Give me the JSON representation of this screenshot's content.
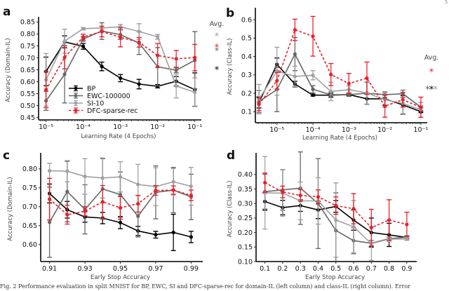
{
  "page_number": "5",
  "caption": "Fig. 2 Performance evaluation in split MNIST for BP, EWC, SI and DFC-sparse-rec for domain-IL (left column) and class-IL (right column). Error",
  "colors": {
    "BP": "#000000",
    "EWC-100000": "#666666",
    "SI-10": "#a0a0a0",
    "DFC-sparse-rec": "#e8202a"
  },
  "chart_data": [
    {
      "panel": "a",
      "type": "line",
      "xscale": "log",
      "xlabel": "Learning Rate (4 Epochs)",
      "ylabel": "Accuracy (Domain-IL)",
      "ylim": [
        0.44,
        0.86
      ],
      "xlim_log10": [
        -5.2,
        -0.9
      ],
      "xticks_log10": [
        -5,
        -4,
        -3,
        -2,
        -1
      ],
      "xtick_labels": [
        "10⁻⁵",
        "10⁻⁴",
        "10⁻³",
        "10⁻²",
        "10⁻¹"
      ],
      "yticks": [
        0.45,
        0.5,
        0.55,
        0.6,
        0.65,
        0.7,
        0.75,
        0.8,
        0.85
      ],
      "ytick_labels": [
        "0.45",
        "0.50",
        "0.55",
        "0.60",
        "0.65",
        "0.70",
        "0.75",
        "0.80",
        "0.85"
      ],
      "x_log10": [
        -5,
        -4.5,
        -4,
        -3.5,
        -3,
        -2.5,
        -2,
        -1.5,
        -1
      ],
      "legend": [
        "BP",
        "EWC-100000",
        "SI-10",
        "DFC-sparse-rec"
      ],
      "legend_position": "lower-center",
      "series": [
        {
          "name": "BP",
          "values": [
            0.643,
            0.767,
            0.748,
            0.664,
            0.615,
            0.59,
            0.581,
            0.602,
            0.567
          ],
          "err": [
            0.06,
            0.025,
            0.012,
            0.018,
            0.015,
            0.02,
            0.007,
            0.02,
            0.07
          ]
        },
        {
          "name": "EWC-100000",
          "values": [
            0.52,
            0.631,
            0.779,
            0.812,
            0.797,
            0.762,
            0.663,
            0.648,
            0.69
          ],
          "err": [
            0.04,
            0.12,
            0.01,
            0.035,
            0.02,
            0.048,
            0.08,
            0.01,
            0.12
          ]
        },
        {
          "name": "SI-10",
          "values": [
            0.608,
            0.77,
            0.822,
            0.825,
            0.83,
            0.81,
            0.788,
            0.582,
            0.556
          ],
          "err": [
            0.11,
            0.05,
            0.005,
            0.008,
            0.01,
            0.033,
            0.01,
            0.05,
            0.06
          ]
        },
        {
          "name": "DFC-sparse-rec",
          "values": [
            0.566,
            0.702,
            0.787,
            0.81,
            0.786,
            0.765,
            0.71,
            0.696,
            0.701
          ],
          "err": [
            0.075,
            0.048,
            0.012,
            0.022,
            0.04,
            0.02,
            0.05,
            0.035,
            0.055
          ]
        }
      ],
      "annotation": {
        "title": "Avg.",
        "rows": [
          {
            "stars": [
              {
                "text": "*",
                "series": "SI-10"
              }
            ]
          },
          {
            "stars": [
              {
                "text": "*",
                "series": "DFC-sparse-rec"
              }
            ]
          },
          {
            "stars": [
              {
                "text": "*",
                "series": "EWC-100000"
              }
            ]
          },
          {
            "stars": [
              {
                "text": "*",
                "series": "BP"
              }
            ]
          }
        ]
      }
    },
    {
      "panel": "b",
      "type": "line",
      "xscale": "log",
      "xlabel": "Learning Rate (4 Epochs)",
      "ylabel": "Accuracy (Class-IL)",
      "ylim": [
        0.04,
        0.65
      ],
      "xlim_log10": [
        -5.6,
        -0.9
      ],
      "xticks_log10": [
        -5,
        -4,
        -3,
        -2,
        -1
      ],
      "xtick_labels": [
        "10⁻⁵",
        "10⁻⁴",
        "10⁻³",
        "10⁻²",
        "10⁻¹"
      ],
      "yticks": [
        0.1,
        0.2,
        0.3,
        0.4,
        0.5,
        0.6
      ],
      "ytick_labels": [
        "0.1",
        "0.2",
        "0.3",
        "0.4",
        "0.5",
        "0.6"
      ],
      "x_log10": [
        -5.5,
        -5,
        -4.5,
        -4,
        -3.5,
        -3,
        -2.5,
        -2,
        -1.5,
        -1
      ],
      "series": [
        {
          "name": "BP",
          "values": [
            0.15,
            0.357,
            0.25,
            0.19,
            0.19,
            0.193,
            0.17,
            0.17,
            0.137,
            0.1
          ],
          "err": [
            0.03,
            0.035,
            0.015,
            0.005,
            0.01,
            0.005,
            0.03,
            0.035,
            0.05,
            0.005
          ]
        },
        {
          "name": "EWC-100000",
          "values": [
            0.155,
            0.22,
            0.413,
            0.222,
            0.192,
            0.193,
            0.2,
            0.193,
            0.197,
            0.125
          ],
          "err": [
            0.06,
            0.12,
            0.09,
            0.02,
            0.015,
            0.01,
            0.06,
            0.015,
            0.02,
            0.005
          ]
        },
        {
          "name": "SI-10",
          "values": [
            0.168,
            0.32,
            0.292,
            0.298,
            0.21,
            0.22,
            0.202,
            0.165,
            0.145,
            0.11
          ],
          "err": [
            0.08,
            0.13,
            0.055,
            0.025,
            0.05,
            0.02,
            0.06,
            0.04,
            0.06,
            0.04
          ]
        },
        {
          "name": "DFC-sparse-rec",
          "values": [
            0.14,
            0.268,
            0.545,
            0.51,
            0.302,
            0.253,
            0.282,
            0.13,
            0.165,
            0.124
          ],
          "err": [
            0.035,
            0.045,
            0.058,
            0.108,
            0.06,
            0.055,
            0.088,
            0.06,
            0.04,
            0.055
          ]
        }
      ],
      "annotation": {
        "title": "Avg.",
        "rows": [
          {
            "stars": [
              {
                "text": "*",
                "series": "DFC-sparse-rec"
              }
            ]
          },
          {
            "stars": [
              {
                "text": "*",
                "series": "EWC-100000"
              },
              {
                "text": "*",
                "series": "BP"
              },
              {
                "text": "*",
                "series": "SI-10"
              }
            ]
          }
        ]
      }
    },
    {
      "panel": "c",
      "type": "line",
      "xlabel": "Early Stop Accuracy",
      "ylabel": "Accuracy (Domain-IL)",
      "ylim": [
        0.555,
        0.835
      ],
      "xlim": [
        0.905,
        0.995
      ],
      "xticks": [
        0.91,
        0.93,
        0.95,
        0.97,
        0.99
      ],
      "xtick_labels": [
        "0.91",
        "0.93",
        "0.95",
        "0.97",
        "0.99"
      ],
      "yticks": [
        0.6,
        0.65,
        0.7,
        0.75,
        0.8
      ],
      "ytick_labels": [
        "0.60",
        "0.65",
        "0.70",
        "0.75",
        "0.80"
      ],
      "x": [
        0.91,
        0.92,
        0.93,
        0.94,
        0.95,
        0.96,
        0.97,
        0.98,
        0.99
      ],
      "series": [
        {
          "name": "BP",
          "values": [
            0.735,
            0.692,
            0.673,
            0.67,
            0.658,
            0.636,
            0.626,
            0.632,
            0.62
          ],
          "err": [
            0.025,
            0.022,
            0.014,
            0.015,
            0.016,
            0.012,
            0.009,
            0.048,
            0.015
          ]
        },
        {
          "name": "EWC-100000",
          "values": [
            0.659,
            0.74,
            0.693,
            0.747,
            0.732,
            0.675,
            0.738,
            0.744,
            0.726
          ],
          "err": [
            0.093,
            0.08,
            0.065,
            0.08,
            0.06,
            0.055,
            0.07,
            0.06,
            0.06
          ]
        },
        {
          "name": "SI-10",
          "values": [
            0.795,
            0.794,
            0.78,
            0.776,
            0.779,
            0.759,
            0.753,
            0.766,
            0.754
          ],
          "err": [
            0.02,
            0.028,
            0.047,
            0.053,
            0.04,
            0.053,
            0.05,
            0.035,
            0.05
          ]
        },
        {
          "name": "DFC-sparse-rec",
          "values": [
            0.72,
            0.679,
            0.688,
            0.713,
            0.697,
            0.708,
            0.743,
            0.744,
            0.73
          ],
          "err": [
            0.055,
            0.025,
            0.012,
            0.043,
            0.03,
            0.022,
            0.013,
            0.011,
            0.014
          ]
        }
      ]
    },
    {
      "panel": "d",
      "type": "line",
      "xlabel": "Early Stop Accuracy",
      "ylabel": "Accuracy (Class-IL)",
      "ylim": [
        0.1,
        0.465
      ],
      "xlim": [
        0.05,
        0.94
      ],
      "xticks": [
        0.1,
        0.2,
        0.3,
        0.4,
        0.5,
        0.6,
        0.7,
        0.8,
        0.9
      ],
      "xtick_labels": [
        "0.1",
        "0.2",
        "0.3",
        "0.4",
        "0.5",
        "0.6",
        "0.7",
        "0.8",
        "0.9"
      ],
      "yticks": [
        0.1,
        0.15,
        0.2,
        0.25,
        0.3,
        0.35,
        0.4
      ],
      "ytick_labels": [
        "0.10",
        "0.15",
        "0.20",
        "0.25",
        "0.30",
        "0.35",
        "0.40"
      ],
      "x": [
        0.1,
        0.2,
        0.3,
        0.4,
        0.5,
        0.6,
        0.7,
        0.8,
        0.9
      ],
      "series": [
        {
          "name": "BP",
          "values": [
            0.307,
            0.286,
            0.293,
            0.278,
            0.29,
            0.243,
            0.2,
            0.192,
            0.183
          ],
          "err": [
            0.03,
            0.025,
            0.02,
            0.03,
            0.02,
            0.035,
            0.05,
            0.04,
            0.005
          ]
        },
        {
          "name": "EWC-100000",
          "values": [
            0.341,
            0.347,
            0.353,
            0.3,
            0.207,
            0.172,
            0.163,
            0.179,
            0.184
          ],
          "err": [
            0.06,
            0.07,
            0.125,
            0.155,
            0.13,
            0.045,
            0.01,
            0.005,
            0.005
          ]
        },
        {
          "name": "SI-10",
          "values": [
            0.337,
            0.336,
            0.309,
            0.309,
            0.243,
            0.22,
            0.162,
            0.177,
            0.178
          ],
          "err": [
            0.125,
            0.08,
            0.065,
            0.08,
            0.128,
            0.09,
            0.058,
            0.008,
            0.005
          ]
        },
        {
          "name": "DFC-sparse-rec",
          "values": [
            0.372,
            0.34,
            0.328,
            0.323,
            0.293,
            0.282,
            0.217,
            0.243,
            0.228
          ],
          "err": [
            0.033,
            0.02,
            0.02,
            0.024,
            0.03,
            0.052,
            0.063,
            0.07,
            0.042
          ]
        }
      ]
    }
  ]
}
